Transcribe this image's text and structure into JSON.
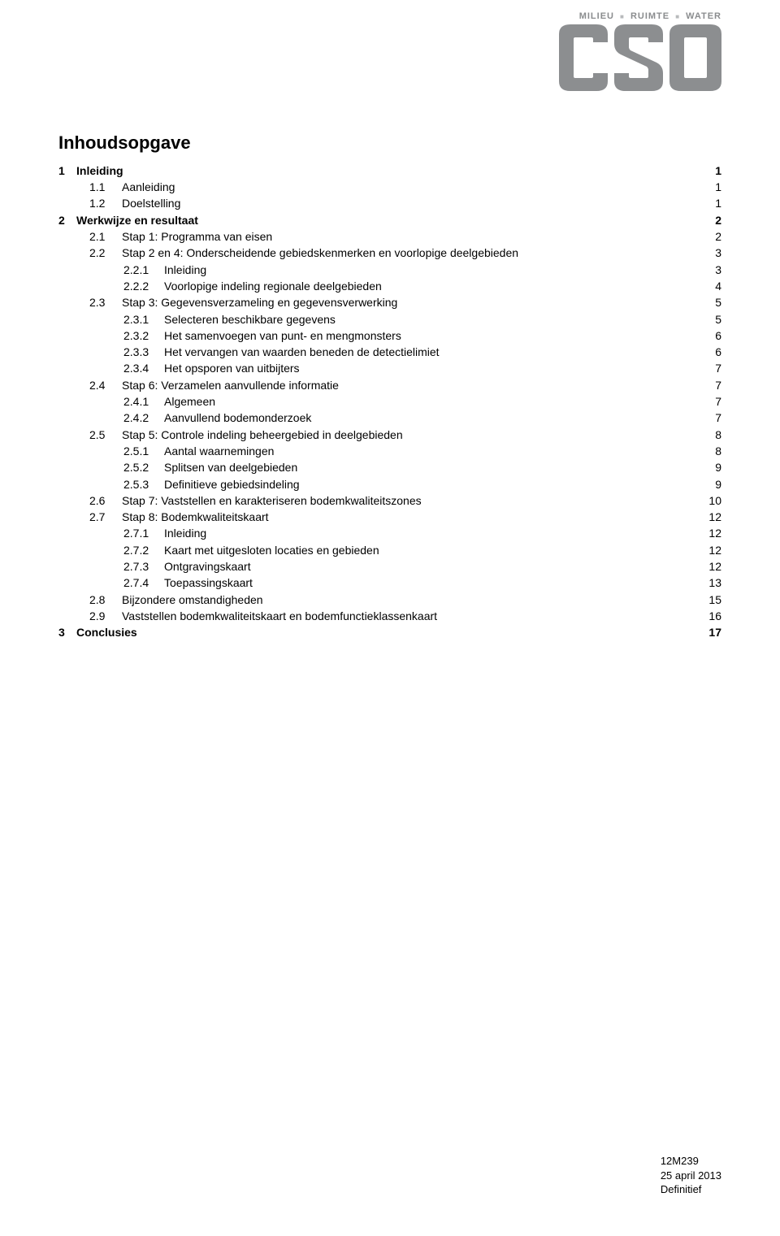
{
  "header": {
    "tag1": "MILIEU",
    "tag2": "RUIMTE",
    "tag3": "WATER"
  },
  "logo": {
    "color": "#8c8e90"
  },
  "title": "Inhoudsopgave",
  "toc": [
    {
      "level": 0,
      "num": "1",
      "label": "Inleiding",
      "page": "1",
      "bold": true
    },
    {
      "level": 1,
      "num": "1.1",
      "label": "Aanleiding",
      "page": "1",
      "bold": false
    },
    {
      "level": 1,
      "num": "1.2",
      "label": "Doelstelling",
      "page": "1",
      "bold": false
    },
    {
      "level": 0,
      "num": "2",
      "label": "Werkwijze en resultaat",
      "page": "2",
      "bold": true
    },
    {
      "level": 1,
      "num": "2.1",
      "label": "Stap 1: Programma van eisen",
      "page": "2",
      "bold": false
    },
    {
      "level": 1,
      "num": "2.2",
      "label": "Stap 2 en 4: Onderscheidende gebiedskenmerken en voorlopige deelgebieden",
      "page": "3",
      "bold": false
    },
    {
      "level": 2,
      "num": "2.2.1",
      "label": "Inleiding",
      "page": "3",
      "bold": false
    },
    {
      "level": 2,
      "num": "2.2.2",
      "label": "Voorlopige indeling regionale deelgebieden",
      "page": "4",
      "bold": false
    },
    {
      "level": 1,
      "num": "2.3",
      "label": "Stap 3: Gegevensverzameling en gegevensverwerking",
      "page": "5",
      "bold": false
    },
    {
      "level": 2,
      "num": "2.3.1",
      "label": "Selecteren beschikbare gegevens",
      "page": "5",
      "bold": false
    },
    {
      "level": 2,
      "num": "2.3.2",
      "label": "Het samenvoegen van punt- en mengmonsters",
      "page": "6",
      "bold": false
    },
    {
      "level": 2,
      "num": "2.3.3",
      "label": "Het vervangen van waarden beneden de detectielimiet",
      "page": "6",
      "bold": false
    },
    {
      "level": 2,
      "num": "2.3.4",
      "label": "Het opsporen van uitbijters",
      "page": "7",
      "bold": false
    },
    {
      "level": 1,
      "num": "2.4",
      "label": "Stap 6: Verzamelen aanvullende informatie",
      "page": "7",
      "bold": false
    },
    {
      "level": 2,
      "num": "2.4.1",
      "label": "Algemeen",
      "page": "7",
      "bold": false
    },
    {
      "level": 2,
      "num": "2.4.2",
      "label": "Aanvullend bodemonderzoek",
      "page": "7",
      "bold": false
    },
    {
      "level": 1,
      "num": "2.5",
      "label": "Stap 5: Controle indeling beheergebied in deelgebieden",
      "page": "8",
      "bold": false
    },
    {
      "level": 2,
      "num": "2.5.1",
      "label": "Aantal waarnemingen",
      "page": "8",
      "bold": false
    },
    {
      "level": 2,
      "num": "2.5.2",
      "label": "Splitsen van deelgebieden",
      "page": "9",
      "bold": false
    },
    {
      "level": 2,
      "num": "2.5.3",
      "label": "Definitieve gebiedsindeling",
      "page": "9",
      "bold": false
    },
    {
      "level": 1,
      "num": "2.6",
      "label": "Stap 7: Vaststellen en karakteriseren bodemkwaliteitszones",
      "page": "10",
      "bold": false
    },
    {
      "level": 1,
      "num": "2.7",
      "label": "Stap 8: Bodemkwaliteitskaart",
      "page": "12",
      "bold": false
    },
    {
      "level": 2,
      "num": "2.7.1",
      "label": "Inleiding",
      "page": "12",
      "bold": false
    },
    {
      "level": 2,
      "num": "2.7.2",
      "label": "Kaart met uitgesloten locaties en gebieden",
      "page": "12",
      "bold": false
    },
    {
      "level": 2,
      "num": "2.7.3",
      "label": "Ontgravingskaart",
      "page": "12",
      "bold": false
    },
    {
      "level": 2,
      "num": "2.7.4",
      "label": "Toepassingskaart",
      "page": "13",
      "bold": false
    },
    {
      "level": 1,
      "num": "2.8",
      "label": "Bijzondere omstandigheden",
      "page": "15",
      "bold": false
    },
    {
      "level": 1,
      "num": "2.9",
      "label": "Vaststellen bodemkwaliteitskaart en bodemfunctieklassenkaart",
      "page": "16",
      "bold": false
    },
    {
      "level": 0,
      "num": "3",
      "label": "Conclusies",
      "page": "17",
      "bold": true
    }
  ],
  "footer": {
    "code": "12M239",
    "date": "25 april 2013",
    "status": "Definitief"
  },
  "colors": {
    "text": "#000000",
    "header_text": "#8a8c8e",
    "background": "#ffffff"
  }
}
